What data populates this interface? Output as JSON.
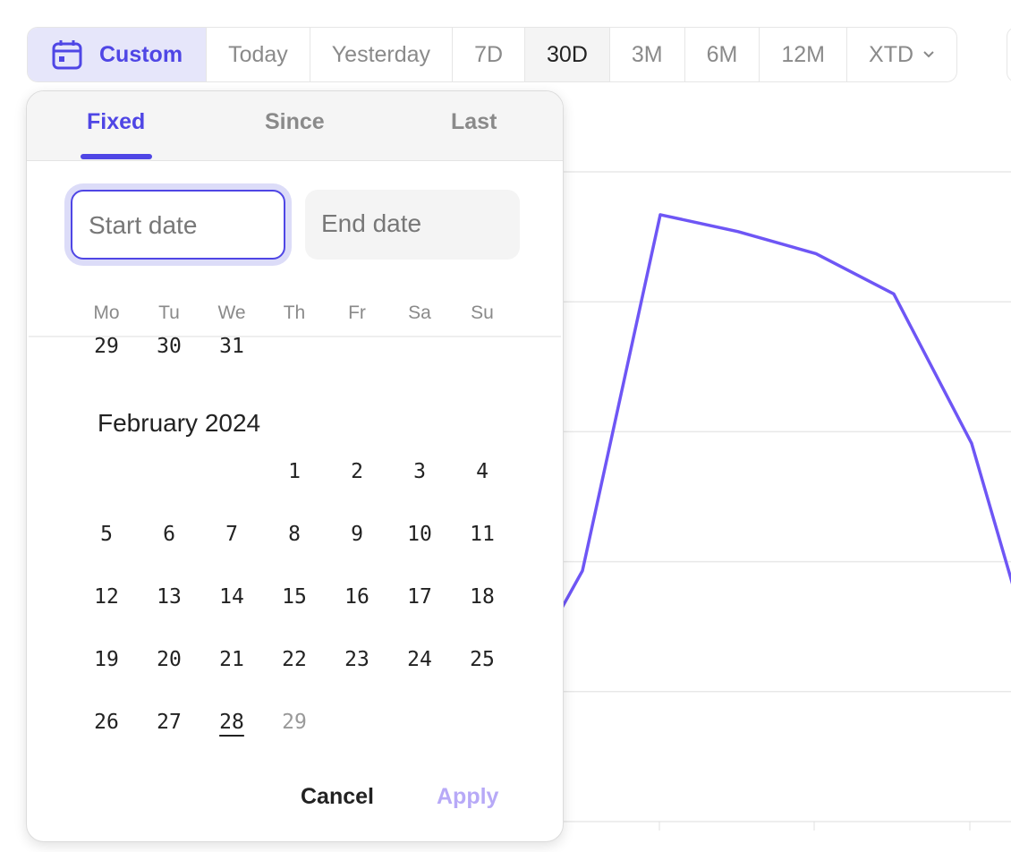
{
  "range_bar": {
    "custom_label": "Custom",
    "icon": "calendar-icon",
    "options": [
      "Today",
      "Yesterday",
      "7D",
      "30D",
      "3M",
      "6M",
      "12M"
    ],
    "active": "30D",
    "xtd_label": "XTD",
    "accent": "#4f46e5"
  },
  "popover": {
    "tabs": [
      "Fixed",
      "Since",
      "Last"
    ],
    "active_tab": "Fixed",
    "start_placeholder": "Start date",
    "end_placeholder": "End date",
    "weekdays": [
      "Mo",
      "Tu",
      "We",
      "Th",
      "Fr",
      "Sa",
      "Su"
    ],
    "prev_month_tail": [
      "29",
      "30",
      "31"
    ],
    "month_title": "February 2024",
    "first_weekday_index": 3,
    "days": [
      "1",
      "2",
      "3",
      "4",
      "5",
      "6",
      "7",
      "8",
      "9",
      "10",
      "11",
      "12",
      "13",
      "14",
      "15",
      "16",
      "17",
      "18",
      "19",
      "20",
      "21",
      "22",
      "23",
      "24",
      "25",
      "26",
      "27",
      "28",
      "29"
    ],
    "today": "28",
    "disabled_days": [
      "29"
    ],
    "cancel_label": "Cancel",
    "apply_label": "Apply",
    "apply_color": "#b7a9f7"
  },
  "chart_data": {
    "type": "line",
    "color": "#6e56f5",
    "grid": true,
    "y_gridlines": 5,
    "ylim": [
      0,
      5
    ],
    "values": [
      0.85,
      1.93,
      4.67,
      4.54,
      4.37,
      4.06,
      2.91,
      0.85
    ]
  }
}
